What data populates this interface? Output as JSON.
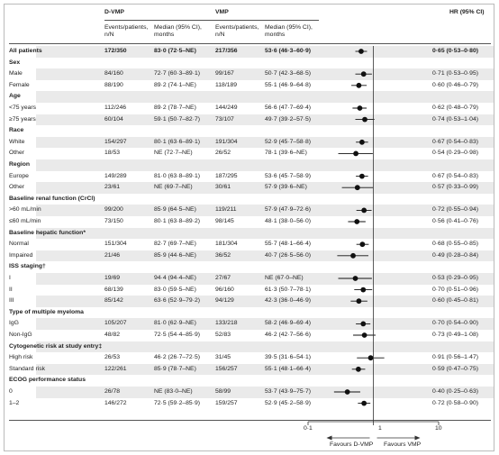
{
  "header": {
    "group1": "D-VMP",
    "group2": "VMP",
    "hr": "HR (95% CI)",
    "events_label": "Events/patients, n/N",
    "median_label": "Median (95% CI), months"
  },
  "axis": {
    "ticks": [
      "0·1",
      "1",
      "10"
    ],
    "favours_left": "Favours D-VMP",
    "favours_right": "Favours VMP"
  },
  "colors": {
    "marker": "#111111",
    "shade": "#eaeaea",
    "rule": "#555555"
  },
  "chart_data": {
    "type": "forest",
    "x_scale": "log",
    "xlim": [
      0.1,
      10
    ],
    "reference": 1,
    "columns": [
      "D-VMP events/patients, n/N",
      "D-VMP median (95% CI), months",
      "VMP events/patients, n/N",
      "VMP median (95% CI), months",
      "HR (95% CI)"
    ],
    "rows": [
      {
        "label": "All patients",
        "bold": true,
        "d_events": "172/350",
        "d_median": "83·0 (72·5–NE)",
        "v_events": "217/356",
        "v_median": "53·6 (46·3–60·9)",
        "hr_text": "0·65 (0·53–0·80)",
        "hr": 0.65,
        "lo": 0.53,
        "hi": 0.8
      },
      {
        "label": "Sex",
        "section": true
      },
      {
        "label": "Male",
        "d_events": "84/160",
        "d_median": "72·7 (60·3–89·1)",
        "v_events": "99/167",
        "v_median": "50·7 (42·3–68·5)",
        "hr_text": "0·71 (0·53–0·95)",
        "hr": 0.71,
        "lo": 0.53,
        "hi": 0.95
      },
      {
        "label": "Female",
        "d_events": "88/190",
        "d_median": "89·2 (74·1–NE)",
        "v_events": "118/189",
        "v_median": "55·1 (46·9–64·8)",
        "hr_text": "0·60 (0·46–0·79)",
        "hr": 0.6,
        "lo": 0.46,
        "hi": 0.79
      },
      {
        "label": "Age",
        "section": true
      },
      {
        "label": "<75 years",
        "d_events": "112/246",
        "d_median": "89·2 (78·7–NE)",
        "v_events": "144/249",
        "v_median": "56·6 (47·7–69·4)",
        "hr_text": "0·62 (0·48–0·79)",
        "hr": 0.62,
        "lo": 0.48,
        "hi": 0.79
      },
      {
        "label": "≥75 years",
        "d_events": "60/104",
        "d_median": "59·1 (50·7–82·7)",
        "v_events": "73/107",
        "v_median": "49·7 (39·2–57·5)",
        "hr_text": "0·74 (0·53–1·04)",
        "hr": 0.74,
        "lo": 0.53,
        "hi": 1.04
      },
      {
        "label": "Race",
        "section": true
      },
      {
        "label": "White",
        "d_events": "154/297",
        "d_median": "80·1 (63·6–89·1)",
        "v_events": "191/304",
        "v_median": "52·9 (45·7–58·8)",
        "hr_text": "0·67 (0·54–0·83)",
        "hr": 0.67,
        "lo": 0.54,
        "hi": 0.83
      },
      {
        "label": "Other",
        "d_events": "18/53",
        "d_median": "NE (72·7–NE)",
        "v_events": "26/52",
        "v_median": "78·1 (39·6–NE)",
        "hr_text": "0·54 (0·29–0·98)",
        "hr": 0.54,
        "lo": 0.29,
        "hi": 0.98
      },
      {
        "label": "Region",
        "section": true
      },
      {
        "label": "Europe",
        "d_events": "149/289",
        "d_median": "81·0 (63·8–89·1)",
        "v_events": "187/295",
        "v_median": "53·6 (45·7–58·9)",
        "hr_text": "0·67 (0·54–0·83)",
        "hr": 0.67,
        "lo": 0.54,
        "hi": 0.83
      },
      {
        "label": "Other",
        "d_events": "23/61",
        "d_median": "NE (69·7–NE)",
        "v_events": "30/61",
        "v_median": "57·9 (39·6–NE)",
        "hr_text": "0·57 (0·33–0·99)",
        "hr": 0.57,
        "lo": 0.33,
        "hi": 0.99
      },
      {
        "label": "Baseline renal function (CrCl)",
        "section": true
      },
      {
        "label": ">60 mL/min",
        "d_events": "99/200",
        "d_median": "85·9 (64·5–NE)",
        "v_events": "119/211",
        "v_median": "57·9 (47·9–72·6)",
        "hr_text": "0·72 (0·55–0·94)",
        "hr": 0.72,
        "lo": 0.55,
        "hi": 0.94
      },
      {
        "label": "≤60 mL/min",
        "d_events": "73/150",
        "d_median": "80·1 (63·8–89·2)",
        "v_events": "98/145",
        "v_median": "48·1 (38·0–56·0)",
        "hr_text": "0·56 (0·41–0·76)",
        "hr": 0.56,
        "lo": 0.41,
        "hi": 0.76
      },
      {
        "label": "Baseline hepatic function*",
        "section": true
      },
      {
        "label": "Normal",
        "d_events": "151/304",
        "d_median": "82·7 (69·7–NE)",
        "v_events": "181/304",
        "v_median": "55·7 (48·1–66·4)",
        "hr_text": "0·68 (0·55–0·85)",
        "hr": 0.68,
        "lo": 0.55,
        "hi": 0.85
      },
      {
        "label": "Impaired",
        "d_events": "21/46",
        "d_median": "85·9 (44·6–NE)",
        "v_events": "36/52",
        "v_median": "40·7 (26·5–56·0)",
        "hr_text": "0·49 (0·28–0·84)",
        "hr": 0.49,
        "lo": 0.28,
        "hi": 0.84
      },
      {
        "label": "ISS staging†",
        "section": true
      },
      {
        "label": "I",
        "d_events": "19/69",
        "d_median": "94·4 (94·4–NE)",
        "v_events": "27/67",
        "v_median": "NE (67·0–NE)",
        "hr_text": "0·53 (0·29–0·95)",
        "hr": 0.53,
        "lo": 0.29,
        "hi": 0.95
      },
      {
        "label": "II",
        "d_events": "68/139",
        "d_median": "83·0 (59·5–NE)",
        "v_events": "96/160",
        "v_median": "61·3 (50·7–78·1)",
        "hr_text": "0·70 (0·51–0·96)",
        "hr": 0.7,
        "lo": 0.51,
        "hi": 0.96
      },
      {
        "label": "III",
        "d_events": "85/142",
        "d_median": "63·6 (52·9–79·2)",
        "v_events": "94/129",
        "v_median": "42·3 (36·0–46·9)",
        "hr_text": "0·60 (0·45–0·81)",
        "hr": 0.6,
        "lo": 0.45,
        "hi": 0.81
      },
      {
        "label": "Type of multiple myeloma",
        "section": true
      },
      {
        "label": "IgG",
        "d_events": "105/207",
        "d_median": "81·0 (62·9–NE)",
        "v_events": "133/218",
        "v_median": "58·2 (46·9–69·4)",
        "hr_text": "0·70 (0·54–0·90)",
        "hr": 0.7,
        "lo": 0.54,
        "hi": 0.9
      },
      {
        "label": "Non-IgG",
        "d_events": "48/82",
        "d_median": "72·5 (54·4–85·9)",
        "v_events": "52/83",
        "v_median": "46·2 (42·7–56·6)",
        "hr_text": "0·73 (0·49–1·08)",
        "hr": 0.73,
        "lo": 0.49,
        "hi": 1.08
      },
      {
        "label": "Cytogenetic risk at study entry‡",
        "section": true
      },
      {
        "label": "High risk",
        "d_events": "26/53",
        "d_median": "46·2 (26·7–72·5)",
        "v_events": "31/45",
        "v_median": "39·5 (31·6–54·1)",
        "hr_text": "0·91 (0·56–1·47)",
        "hr": 0.91,
        "lo": 0.56,
        "hi": 1.47
      },
      {
        "label": "Standard risk",
        "d_events": "122/261",
        "d_median": "85·9 (78·7–NE)",
        "v_events": "156/257",
        "v_median": "55·1 (48·1–66·4)",
        "hr_text": "0·59 (0·47–0·75)",
        "hr": 0.59,
        "lo": 0.47,
        "hi": 0.75
      },
      {
        "label": "ECOG performance status",
        "section": true
      },
      {
        "label": "0",
        "d_events": "26/78",
        "d_median": "NE (83·0–NE)",
        "v_events": "58/99",
        "v_median": "53·7 (43·9–75·7)",
        "hr_text": "0·40 (0·25–0·63)",
        "hr": 0.4,
        "lo": 0.25,
        "hi": 0.63
      },
      {
        "label": "1–2",
        "d_events": "146/272",
        "d_median": "72·5 (59·2–85·9)",
        "v_events": "159/257",
        "v_median": "52·9 (45·2–58·9)",
        "hr_text": "0·72 (0·58–0·90)",
        "hr": 0.72,
        "lo": 0.58,
        "hi": 0.9
      }
    ]
  }
}
